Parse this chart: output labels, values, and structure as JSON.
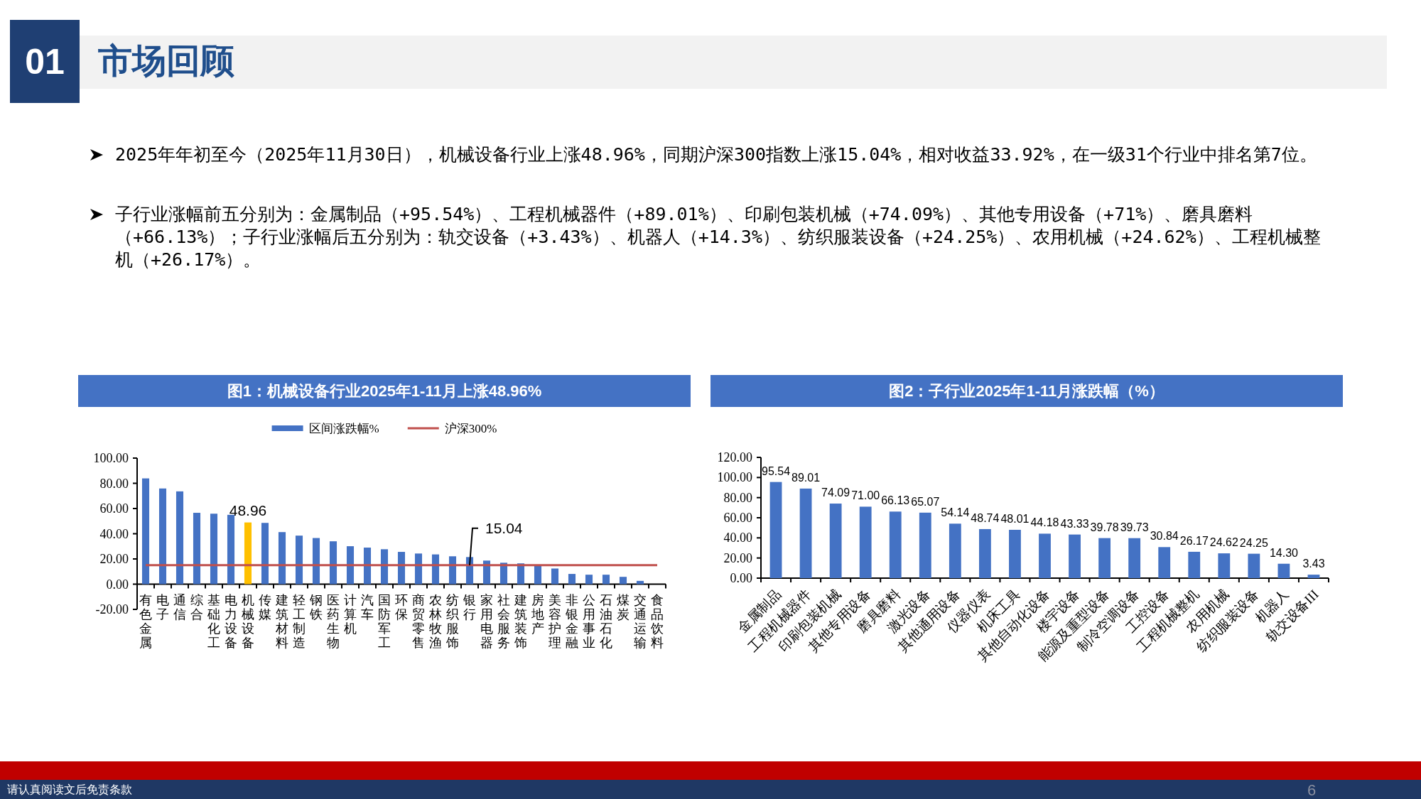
{
  "chart_data": [
    {
      "type": "other",
      "title": "市场回顾",
      "annotations": [
        "01",
        "2025年年初至今（2025年11月30日），机械设备行业上涨48.96%，同期沪深300指数上涨15.04%，相对收益33.92%，在一级31个行业中排名第7位。",
        "子行业涨幅前五分别为：金属制品（+95.54%）、工程机械器件（+89.01%）、印刷包装机械（+74.09%）、其他专用设备（+71%）、磨具磨料（+66.13%）；子行业涨幅后五分别为：轨交设备（+3.43%）、机器人（+14.3%）、纺织服装设备（+24.25%）、农用机械（+24.62%）、工程机械整机（+26.17%）。",
        "请认真阅读文后免责条款",
        "6"
      ]
    },
    {
      "type": "bar",
      "title": "图1：机械设备行业2025年1-11月上涨48.96%",
      "legend": "top",
      "categories": [
        "有色金属",
        "电子",
        "通信",
        "综合",
        "基础化工",
        "电力设备",
        "机械设备",
        "传媒",
        "建筑材料",
        "轻工制造",
        "钢铁",
        "医药生物",
        "计算机",
        "汽车",
        "国防军工",
        "环保",
        "商贸零售",
        "农林牧渔",
        "纺织服饰",
        "银行",
        "家用电器",
        "社会服务",
        "建筑装饰",
        "房地产",
        "美容护理",
        "非银金融",
        "公用事业",
        "石油石化",
        "煤炭",
        "交通运输",
        "食品饮料"
      ],
      "series": [
        {
          "name": "区间涨跌幅%",
          "type": "bar",
          "colors": [
            "#4472c4",
            "#4472c4",
            "#4472c4",
            "#4472c4",
            "#4472c4",
            "#4472c4",
            "#ffc000",
            "#4472c4",
            "#4472c4",
            "#4472c4",
            "#4472c4",
            "#4472c4",
            "#4472c4",
            "#4472c4",
            "#4472c4",
            "#4472c4",
            "#4472c4",
            "#4472c4",
            "#4472c4",
            "#4472c4",
            "#4472c4",
            "#4472c4",
            "#4472c4",
            "#4472c4",
            "#4472c4",
            "#4472c4",
            "#4472c4",
            "#4472c4",
            "#4472c4",
            "#4472c4",
            "#4472c4"
          ],
          "values": [
            83.9,
            75.9,
            73.6,
            56.6,
            55.9,
            55.0,
            48.96,
            48.6,
            41.3,
            38.5,
            36.6,
            34.0,
            30.1,
            29.0,
            27.7,
            25.6,
            24.3,
            23.6,
            22.1,
            21.5,
            18.7,
            17.0,
            16.5,
            15.0,
            12.4,
            8.1,
            7.5,
            7.5,
            5.8,
            2.6,
            0
          ],
          "value_labels": [
            null,
            null,
            null,
            null,
            null,
            null,
            "48.96",
            null,
            null,
            null,
            null,
            null,
            null,
            null,
            null,
            null,
            null,
            null,
            null,
            null,
            null,
            null,
            null,
            null,
            null,
            null,
            null,
            null,
            null,
            null,
            null
          ]
        },
        {
          "name": "沪深300%",
          "type": "line",
          "color": "#c0504d",
          "values": [
            15.04,
            15.04,
            15.04,
            15.04,
            15.04,
            15.04,
            15.04,
            15.04,
            15.04,
            15.04,
            15.04,
            15.04,
            15.04,
            15.04,
            15.04,
            15.04,
            15.04,
            15.04,
            15.04,
            15.04,
            15.04,
            15.04,
            15.04,
            15.04,
            15.04,
            15.04,
            15.04,
            15.04,
            15.04,
            15.04,
            15.04
          ],
          "value_labels": [
            null,
            null,
            null,
            null,
            null,
            null,
            null,
            null,
            null,
            null,
            null,
            null,
            null,
            null,
            null,
            null,
            null,
            null,
            null,
            "15.04",
            null,
            null,
            null,
            null,
            null,
            null,
            null,
            null,
            null,
            null,
            null
          ]
        }
      ],
      "ylim": [
        -20,
        100
      ],
      "yticks": [
        {
          "value": -20,
          "label": "-20.00"
        },
        {
          "value": 0,
          "label": "0.00"
        },
        {
          "value": 20,
          "label": "20.00"
        },
        {
          "value": 40,
          "label": "40.00"
        },
        {
          "value": 60,
          "label": "60.00"
        },
        {
          "value": 80,
          "label": "80.00"
        },
        {
          "value": 100,
          "label": "100.00"
        }
      ]
    },
    {
      "type": "bar",
      "title": "图2：子行业2025年1-11月涨跌幅（%）",
      "color": "#4472c4",
      "categories": [
        "金属制品",
        "工程机械器件",
        "印刷包装机械",
        "其他专用设备",
        "磨具磨料",
        "激光设备",
        "其他通用设备",
        "仪器仪表",
        "机床工具",
        "其他自动化设备",
        "楼宇设备",
        "能源及重型设备",
        "制冷空调设备",
        "工控设备",
        "工程机械整机",
        "农用机械",
        "纺织服装设备",
        "机器人",
        "轨交设备III"
      ],
      "values": [
        95.54,
        89.01,
        74.09,
        71.0,
        66.13,
        65.07,
        54.14,
        48.74,
        48.01,
        44.18,
        43.33,
        39.78,
        39.73,
        30.84,
        26.17,
        24.62,
        24.25,
        14.3,
        3.43
      ],
      "value_labels": [
        "95.54",
        "89.01",
        "74.09",
        "71.00",
        "66.13",
        "65.07",
        "54.14",
        "48.74",
        "48.01",
        "44.18",
        "43.33",
        "39.78",
        "39.73",
        "30.84",
        "26.17",
        "24.62",
        "24.25",
        "14.30",
        "3.43"
      ],
      "ylim": [
        0,
        120
      ],
      "yticks": [
        {
          "value": 0,
          "label": "0.00"
        },
        {
          "value": 20,
          "label": "20.00"
        },
        {
          "value": 40,
          "label": "40.00"
        },
        {
          "value": 60,
          "label": "60.00"
        },
        {
          "value": 80,
          "label": "80.00"
        },
        {
          "value": 100,
          "label": "100.00"
        },
        {
          "value": 120,
          "label": "120.00"
        }
      ]
    }
  ]
}
